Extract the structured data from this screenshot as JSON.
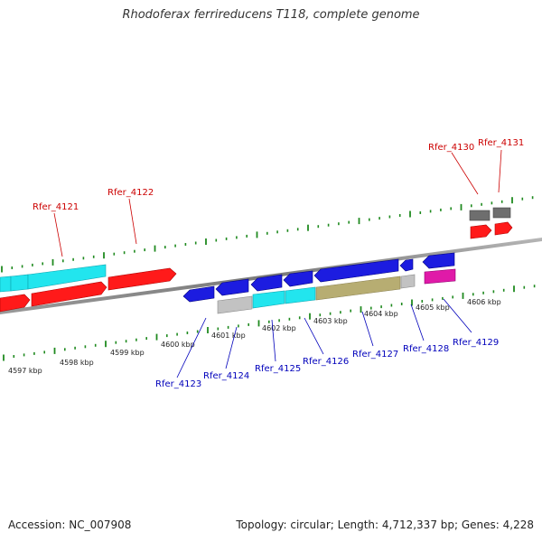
{
  "title": "Rhodoferax ferrireducens T118, complete genome",
  "footer": {
    "accession": "Accession: NC_007908",
    "summary": "Topology: circular; Length: 4,712,337 bp; Genes: 4,228"
  },
  "colors": {
    "backbone": "#8a8a8a",
    "tick": "#1f8a1f",
    "label_forward": "#cc0000",
    "label_reverse": "#0000bb",
    "red": "#ff1a1a",
    "cyan": "#22e5ee",
    "blue": "#1c1ce0",
    "gray": "#c2c2c2",
    "darkgray": "#6e6e6e",
    "olive": "#b7ad72",
    "magenta": "#e01aa8"
  },
  "scale_labels": [
    {
      "text": "4597 kbp",
      "kbp": 4597
    },
    {
      "text": "4598 kbp",
      "kbp": 4598
    },
    {
      "text": "4599 kbp",
      "kbp": 4599
    },
    {
      "text": "4600 kbp",
      "kbp": 4600
    },
    {
      "text": "4601 kbp",
      "kbp": 4601
    },
    {
      "text": "4602 kbp",
      "kbp": 4602
    },
    {
      "text": "4603 kbp",
      "kbp": 4603
    },
    {
      "text": "4604 kbp",
      "kbp": 4604
    },
    {
      "text": "4605 kbp",
      "kbp": 4605
    },
    {
      "text": "4606 kbp",
      "kbp": 4606
    }
  ],
  "gene_labels": [
    {
      "id": "rfer_4121",
      "text": "Rfer_4121",
      "strand": "forward"
    },
    {
      "id": "rfer_4122",
      "text": "Rfer_4122",
      "strand": "forward"
    },
    {
      "id": "rfer_4130",
      "text": "Rfer_4130",
      "strand": "forward"
    },
    {
      "id": "rfer_4131",
      "text": "Rfer_4131",
      "strand": "forward"
    },
    {
      "id": "rfer_4123",
      "text": "Rfer_4123",
      "strand": "reverse"
    },
    {
      "id": "rfer_4124",
      "text": "Rfer_4124",
      "strand": "reverse"
    },
    {
      "id": "rfer_4125",
      "text": "Rfer_4125",
      "strand": "reverse"
    },
    {
      "id": "rfer_4126",
      "text": "Rfer_4126",
      "strand": "reverse"
    },
    {
      "id": "rfer_4127",
      "text": "Rfer_4127",
      "strand": "reverse"
    },
    {
      "id": "rfer_4128",
      "text": "Rfer_4128",
      "strand": "reverse"
    },
    {
      "id": "rfer_4129",
      "text": "Rfer_4129",
      "strand": "reverse"
    }
  ]
}
